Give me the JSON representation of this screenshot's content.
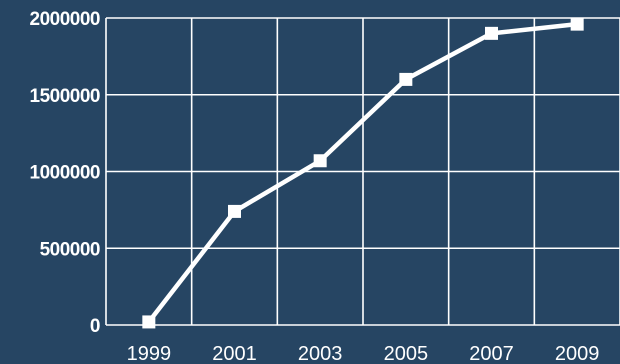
{
  "chart_data": {
    "type": "line",
    "x": [
      "1999",
      "2001",
      "2003",
      "2005",
      "2007",
      "2009"
    ],
    "series": [
      {
        "values": [
          20000,
          740000,
          1070000,
          1600000,
          1900000,
          1960000
        ]
      }
    ],
    "ylim": [
      0,
      2000000
    ],
    "yticks": [
      "0",
      "500000",
      "1000000",
      "1500000",
      "2000000"
    ],
    "grid": true,
    "colors": {
      "background": "#264563",
      "line": "#ffffff",
      "grid": "#ffffff",
      "text": "#ffffff"
    }
  }
}
